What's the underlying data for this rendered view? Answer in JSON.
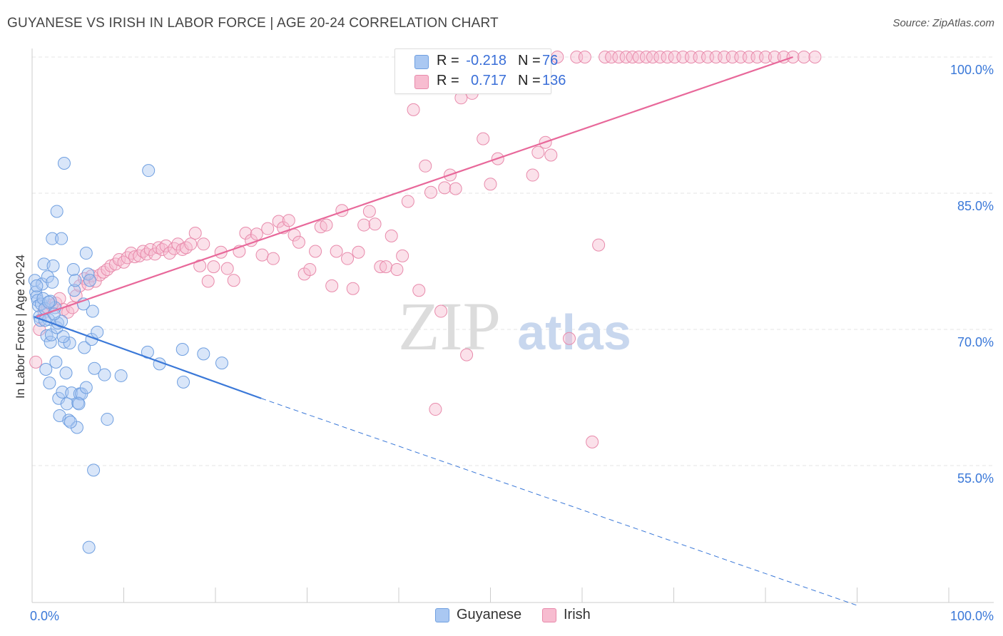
{
  "header": {
    "title": "GUYANESE VS IRISH IN LABOR FORCE | AGE 20-24 CORRELATION CHART",
    "source": "Source: ZipAtlas.com"
  },
  "legend": {
    "rows": [
      {
        "r_label": "R =",
        "r_value": "-0.218",
        "n_label": "N =",
        "n_value": "76",
        "fill": "#aac8f2",
        "stroke": "#6f9fe0"
      },
      {
        "r_label": "R =",
        "r_value": "0.717",
        "n_label": "N =",
        "n_value": "136",
        "fill": "#f7bcd0",
        "stroke": "#e88aab"
      }
    ]
  },
  "bottom_legend": {
    "guyanese": "Guyanese",
    "irish": "Irish"
  },
  "watermark": {
    "zip": "ZIP",
    "atlas": "atlas"
  },
  "chart_data": {
    "type": "scatter",
    "title": "GUYANESE VS IRISH IN LABOR FORCE | AGE 20-24 CORRELATION CHART",
    "xlabel": "",
    "ylabel": "In Labor Force | Age 20-24",
    "xlim": [
      0,
      100
    ],
    "ylim": [
      40,
      101
    ],
    "x_tick_labels": [
      "0.0%",
      "100.0%"
    ],
    "y_ticks": [
      55,
      70,
      85,
      100
    ],
    "y_tick_labels": [
      "55.0%",
      "70.0%",
      "85.0%",
      "100.0%"
    ],
    "grid": true,
    "legend_position": "top-center",
    "series": [
      {
        "name": "Guyanese",
        "color": "#3a78d8",
        "fill": "#aac8f2",
        "stroke": "#6f9fe0",
        "R": -0.218,
        "N": 76,
        "trend": {
          "x0": 0.2,
          "y0": 71.4,
          "x1": 25,
          "y1": 62.4,
          "dash_to_x": 90,
          "dash_to_y": 39.6
        },
        "points": [
          [
            0.3,
            75.4
          ],
          [
            0.4,
            74.1
          ],
          [
            0.5,
            73.6
          ],
          [
            0.6,
            73.2
          ],
          [
            0.7,
            72.6
          ],
          [
            0.8,
            71.4
          ],
          [
            0.9,
            71.0
          ],
          [
            1.0,
            72.8
          ],
          [
            1.1,
            75.0
          ],
          [
            1.2,
            73.4
          ],
          [
            1.3,
            77.2
          ],
          [
            1.4,
            72.3
          ],
          [
            1.5,
            65.6
          ],
          [
            1.6,
            69.3
          ],
          [
            1.7,
            75.8
          ],
          [
            1.8,
            71.1
          ],
          [
            1.9,
            64.1
          ],
          [
            2.0,
            68.6
          ],
          [
            2.1,
            69.4
          ],
          [
            2.2,
            75.2
          ],
          [
            2.3,
            77.0
          ],
          [
            2.5,
            72.4
          ],
          [
            2.6,
            66.4
          ],
          [
            2.7,
            70.2
          ],
          [
            2.8,
            70.7
          ],
          [
            2.9,
            62.4
          ],
          [
            3.0,
            60.5
          ],
          [
            3.2,
            70.9
          ],
          [
            3.3,
            63.1
          ],
          [
            3.5,
            68.6
          ],
          [
            3.7,
            65.2
          ],
          [
            3.8,
            61.8
          ],
          [
            4.0,
            60.0
          ],
          [
            4.1,
            68.5
          ],
          [
            4.3,
            63.0
          ],
          [
            4.5,
            76.6
          ],
          [
            4.6,
            74.3
          ],
          [
            4.7,
            75.4
          ],
          [
            4.9,
            59.2
          ],
          [
            5.0,
            61.9
          ],
          [
            5.2,
            62.9
          ],
          [
            5.4,
            62.9
          ],
          [
            5.7,
            68.0
          ],
          [
            5.9,
            63.6
          ],
          [
            6.1,
            76.1
          ],
          [
            6.3,
            75.4
          ],
          [
            6.5,
            68.9
          ],
          [
            6.6,
            72.0
          ],
          [
            6.8,
            65.7
          ],
          [
            7.1,
            69.7
          ],
          [
            2.2,
            80.0
          ],
          [
            3.2,
            80.0
          ],
          [
            2.7,
            83.0
          ],
          [
            3.5,
            88.3
          ],
          [
            5.9,
            78.4
          ],
          [
            6.2,
            46.0
          ],
          [
            6.7,
            54.5
          ],
          [
            7.9,
            65.0
          ],
          [
            8.2,
            60.1
          ],
          [
            9.7,
            64.9
          ],
          [
            12.7,
            87.5
          ],
          [
            12.6,
            67.5
          ],
          [
            13.9,
            66.2
          ],
          [
            16.4,
            67.8
          ],
          [
            16.5,
            64.2
          ],
          [
            18.7,
            67.3
          ],
          [
            20.7,
            66.3
          ],
          [
            5.6,
            72.8
          ],
          [
            1.4,
            71.0
          ],
          [
            0.5,
            74.8
          ],
          [
            2.0,
            73.1
          ],
          [
            3.4,
            69.2
          ],
          [
            4.2,
            59.8
          ],
          [
            1.8,
            73.0
          ],
          [
            2.4,
            71.7
          ],
          [
            5.1,
            61.8
          ]
        ]
      },
      {
        "name": "Irish",
        "color": "#e8689a",
        "fill": "#f7bcd0",
        "stroke": "#e88aab",
        "R": 0.717,
        "N": 136,
        "trend": {
          "x0": 0.5,
          "y0": 71.4,
          "x1": 83,
          "y1": 100.0
        },
        "points": [
          [
            0.4,
            66.4
          ],
          [
            0.8,
            70.0
          ],
          [
            1.3,
            71.9
          ],
          [
            1.7,
            72.4
          ],
          [
            2.1,
            72.7
          ],
          [
            2.6,
            72.9
          ],
          [
            3.0,
            73.4
          ],
          [
            3.4,
            72.2
          ],
          [
            3.9,
            71.9
          ],
          [
            4.4,
            72.4
          ],
          [
            4.8,
            73.7
          ],
          [
            5.2,
            74.8
          ],
          [
            5.7,
            75.6
          ],
          [
            6.1,
            75.0
          ],
          [
            6.5,
            75.9
          ],
          [
            6.9,
            75.3
          ],
          [
            7.4,
            76.0
          ],
          [
            7.8,
            76.3
          ],
          [
            8.2,
            76.6
          ],
          [
            8.6,
            77.0
          ],
          [
            9.1,
            77.2
          ],
          [
            9.5,
            77.7
          ],
          [
            10.0,
            77.4
          ],
          [
            10.4,
            77.9
          ],
          [
            10.8,
            78.4
          ],
          [
            11.2,
            78.0
          ],
          [
            11.7,
            78.1
          ],
          [
            12.1,
            78.6
          ],
          [
            12.5,
            78.3
          ],
          [
            12.9,
            78.8
          ],
          [
            13.4,
            78.3
          ],
          [
            13.8,
            79.0
          ],
          [
            14.2,
            78.8
          ],
          [
            14.6,
            79.2
          ],
          [
            15.0,
            78.4
          ],
          [
            15.5,
            78.9
          ],
          [
            15.9,
            79.4
          ],
          [
            16.4,
            78.8
          ],
          [
            16.8,
            79.0
          ],
          [
            17.3,
            79.4
          ],
          [
            17.8,
            80.6
          ],
          [
            18.3,
            77.0
          ],
          [
            18.7,
            79.4
          ],
          [
            19.2,
            75.3
          ],
          [
            19.8,
            76.9
          ],
          [
            20.6,
            78.5
          ],
          [
            21.3,
            76.7
          ],
          [
            22.0,
            75.4
          ],
          [
            22.6,
            78.6
          ],
          [
            23.3,
            80.6
          ],
          [
            23.9,
            79.8
          ],
          [
            24.5,
            80.5
          ],
          [
            25.1,
            78.2
          ],
          [
            25.7,
            81.1
          ],
          [
            26.3,
            77.8
          ],
          [
            26.9,
            81.9
          ],
          [
            27.4,
            81.2
          ],
          [
            28.0,
            82.0
          ],
          [
            28.6,
            80.4
          ],
          [
            29.1,
            79.6
          ],
          [
            29.7,
            76.1
          ],
          [
            30.3,
            76.6
          ],
          [
            30.9,
            78.6
          ],
          [
            31.5,
            81.3
          ],
          [
            32.1,
            81.5
          ],
          [
            32.7,
            74.8
          ],
          [
            33.2,
            78.6
          ],
          [
            33.8,
            83.1
          ],
          [
            34.4,
            77.8
          ],
          [
            35.0,
            74.5
          ],
          [
            35.6,
            78.5
          ],
          [
            36.2,
            81.5
          ],
          [
            36.8,
            83.0
          ],
          [
            37.4,
            81.6
          ],
          [
            38.0,
            76.9
          ],
          [
            38.6,
            76.9
          ],
          [
            39.2,
            80.3
          ],
          [
            39.8,
            76.6
          ],
          [
            40.4,
            78.1
          ],
          [
            41.0,
            84.1
          ],
          [
            41.6,
            94.2
          ],
          [
            42.2,
            74.3
          ],
          [
            42.9,
            88.0
          ],
          [
            43.5,
            85.1
          ],
          [
            44.0,
            61.2
          ],
          [
            44.6,
            72.0
          ],
          [
            45.0,
            85.6
          ],
          [
            45.6,
            87.0
          ],
          [
            46.2,
            85.5
          ],
          [
            46.8,
            95.5
          ],
          [
            47.4,
            67.2
          ],
          [
            48.0,
            96.0
          ],
          [
            49.2,
            91.0
          ],
          [
            50.0,
            86.0
          ],
          [
            50.8,
            88.8
          ],
          [
            51.6,
            97.3
          ],
          [
            52.4,
            100.0
          ],
          [
            53.2,
            100.0
          ],
          [
            54.0,
            100.0
          ],
          [
            54.6,
            87.0
          ],
          [
            55.2,
            89.5
          ],
          [
            56.0,
            90.6
          ],
          [
            56.6,
            89.2
          ],
          [
            57.3,
            100.0
          ],
          [
            58.6,
            69.0
          ],
          [
            59.4,
            100.0
          ],
          [
            60.3,
            100.0
          ],
          [
            61.1,
            57.6
          ],
          [
            61.8,
            79.3
          ],
          [
            62.5,
            100.0
          ],
          [
            63.2,
            100.0
          ],
          [
            64.0,
            100.0
          ],
          [
            64.8,
            100.0
          ],
          [
            65.5,
            100.0
          ],
          [
            66.2,
            100.0
          ],
          [
            67.0,
            100.0
          ],
          [
            67.7,
            100.0
          ],
          [
            68.5,
            100.0
          ],
          [
            69.3,
            100.0
          ],
          [
            70.1,
            100.0
          ],
          [
            71.0,
            100.0
          ],
          [
            71.9,
            100.0
          ],
          [
            72.8,
            100.0
          ],
          [
            73.7,
            100.0
          ],
          [
            74.6,
            100.0
          ],
          [
            75.5,
            100.0
          ],
          [
            76.4,
            100.0
          ],
          [
            77.3,
            100.0
          ],
          [
            78.2,
            100.0
          ],
          [
            79.1,
            100.0
          ],
          [
            80.0,
            100.0
          ],
          [
            81.0,
            100.0
          ],
          [
            82.0,
            100.0
          ],
          [
            83.0,
            100.0
          ],
          [
            84.2,
            100.0
          ],
          [
            85.4,
            100.0
          ]
        ]
      }
    ]
  }
}
